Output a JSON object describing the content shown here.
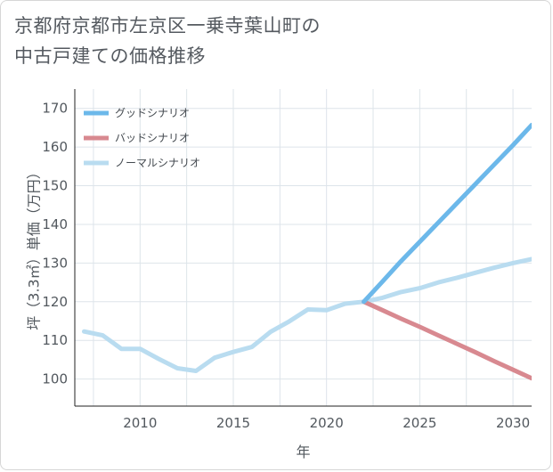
{
  "chart_data": {
    "type": "line",
    "title_lines": [
      "京都府京都市左京区一乗寺葉山町の",
      "中古戸建ての価格推移"
    ],
    "xlabel": "年",
    "ylabel": "坪（3.3㎡）単価（万円）",
    "xlim": [
      2006.5,
      2031
    ],
    "ylim": [
      93,
      175
    ],
    "xticks": [
      2010,
      2015,
      2020,
      2025,
      2030
    ],
    "yticks": [
      100,
      110,
      120,
      130,
      140,
      150,
      160,
      170
    ],
    "grid": true,
    "legend_position": "top-left",
    "series": [
      {
        "name": "グッドシナリオ",
        "color": "#6cb8ea",
        "x": [
          2022,
          2023,
          2024,
          2025,
          2026,
          2027,
          2028,
          2029,
          2030,
          2031
        ],
        "y": [
          120,
          125.2,
          130.5,
          135.5,
          140.5,
          145.5,
          150.5,
          155.5,
          160.5,
          165.7
        ]
      },
      {
        "name": "バッドシナリオ",
        "color": "#d88990",
        "x": [
          2022,
          2023,
          2024,
          2025,
          2026,
          2027,
          2028,
          2029,
          2030,
          2031
        ],
        "y": [
          120,
          117.8,
          115.6,
          113.5,
          111.3,
          109.1,
          106.9,
          104.6,
          102.4,
          100.2
        ]
      },
      {
        "name": "ノーマルシナリオ",
        "color": "#b9dcf0",
        "x": [
          2007,
          2008,
          2009,
          2010,
          2011,
          2012,
          2013,
          2014,
          2015,
          2016,
          2017,
          2018,
          2019,
          2020,
          2021,
          2022,
          2023,
          2024,
          2025,
          2026,
          2027,
          2028,
          2029,
          2030,
          2031
        ],
        "y": [
          112.3,
          111.3,
          107.8,
          107.8,
          105.2,
          102.8,
          102.1,
          105.5,
          107.0,
          108.3,
          112.2,
          114.9,
          118.0,
          117.8,
          119.5,
          120,
          121.0,
          122.5,
          123.5,
          125.0,
          126.2,
          127.5,
          128.8,
          130.0,
          131.0
        ]
      }
    ]
  }
}
